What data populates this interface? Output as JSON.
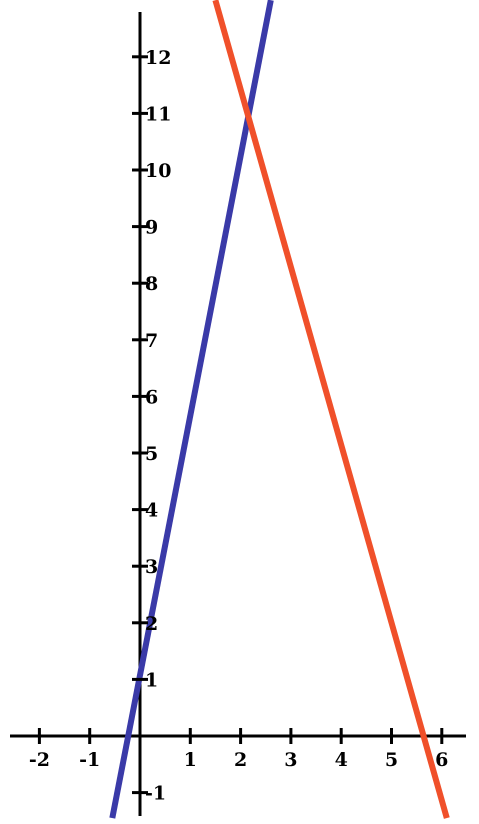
{
  "chart_data": {
    "type": "line",
    "title": "",
    "xlabel": "",
    "ylabel": "",
    "xlim": [
      -2.4,
      6.6
    ],
    "ylim": [
      -1.45,
      13.0
    ],
    "grid": false,
    "x_ticks": [
      -2,
      -1,
      1,
      2,
      3,
      4,
      5,
      6
    ],
    "x_tick_labels": [
      "-2",
      "-1",
      "1",
      "2",
      "3",
      "4",
      "5",
      "6"
    ],
    "y_ticks": [
      -1,
      1,
      2,
      3,
      4,
      5,
      6,
      7,
      8,
      9,
      10,
      11,
      12
    ],
    "y_tick_labels": [
      "-1",
      "1",
      "2",
      "3",
      "4",
      "5",
      "6",
      "7",
      "8",
      "9",
      "10",
      "11",
      "12"
    ],
    "series": [
      {
        "color": "#3a3aa8",
        "x": [
          -0.55,
          2.6
        ],
        "y": [
          -1.45,
          13.0
        ]
      },
      {
        "color": "#f0502a",
        "x": [
          1.5,
          6.1
        ],
        "y": [
          13.0,
          -1.45
        ]
      }
    ]
  }
}
